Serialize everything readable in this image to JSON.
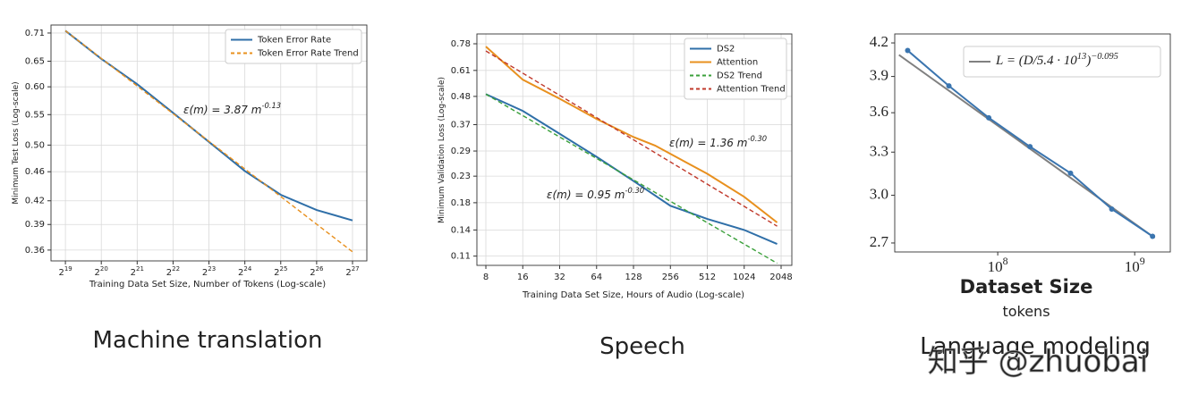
{
  "chart_data": [
    {
      "type": "line",
      "caption": "Machine translation",
      "xlabel": "Training Data Set Size, Number of Tokens (Log-scale)",
      "ylabel": "Minimum Test Loss (Log-scale)",
      "xscale": "log",
      "yscale": "log",
      "grid": true,
      "legend": "upper right",
      "xlim": [
        397000,
        177000000
      ],
      "ylim": [
        0.348,
        0.728
      ],
      "xticks": [
        {
          "value": 524288,
          "label": "2^{19}"
        },
        {
          "value": 1048576,
          "label": "2^{20}"
        },
        {
          "value": 2097152,
          "label": "2^{21}"
        },
        {
          "value": 4194304,
          "label": "2^{22}"
        },
        {
          "value": 8388608,
          "label": "2^{23}"
        },
        {
          "value": 16777216,
          "label": "2^{24}"
        },
        {
          "value": 33554432,
          "label": "2^{25}"
        },
        {
          "value": 67108864,
          "label": "2^{26}"
        },
        {
          "value": 134217728,
          "label": "2^{27}"
        }
      ],
      "yticks": [
        0.36,
        0.39,
        0.42,
        0.46,
        {
          "value": 0.5,
          "label": "0.50"
        },
        0.55,
        {
          "value": 0.6,
          "label": "0.60"
        },
        0.65,
        0.71
      ],
      "series": [
        {
          "name": "Token Error Rate",
          "color": "#2f6fa8",
          "linestyle": "solid",
          "x": [
            524288,
            1048576,
            2097152,
            4194304,
            8388608,
            16777216,
            33554432,
            67108864,
            134217728
          ],
          "values": [
            0.715,
            0.655,
            0.605,
            0.553,
            0.505,
            0.461,
            0.428,
            0.408,
            0.395
          ]
        },
        {
          "name": "Token Error Rate Trend",
          "color": "#e8901e",
          "linestyle": "dashed",
          "x": [
            524288,
            134217728
          ],
          "values": [
            0.715,
            0.358
          ]
        }
      ],
      "annotations": [
        "ε(m) = 3.87 m^{-0.13}"
      ]
    },
    {
      "type": "line",
      "caption": "Speech",
      "xlabel": "Training Data Set Size, Hours of Audio (Log-scale)",
      "ylabel": "Minimum Validation Loss (Log-scale)",
      "xscale": "log",
      "yscale": "log",
      "grid": true,
      "legend": "upper right",
      "xlim": [
        6.76,
        2505
      ],
      "ylim": [
        0.101,
        0.854
      ],
      "xticks": [
        8,
        16,
        32,
        64,
        128,
        256,
        512,
        1024,
        2048
      ],
      "yticks": [
        0.11,
        0.14,
        0.18,
        0.23,
        0.29,
        0.37,
        0.48,
        0.61,
        0.78
      ],
      "series": [
        {
          "name": "DS2",
          "color": "#2f6fa8",
          "linestyle": "solid",
          "x": [
            8,
            16,
            32,
            64,
            128,
            256,
            512,
            1024,
            1900
          ],
          "values": [
            0.49,
            0.42,
            0.34,
            0.275,
            0.22,
            0.175,
            0.155,
            0.14,
            0.123
          ]
        },
        {
          "name": "Attention",
          "color": "#e8901e",
          "linestyle": "solid",
          "x": [
            8,
            16,
            32,
            64,
            128,
            192,
            512,
            1024,
            1900
          ],
          "values": [
            0.76,
            0.56,
            0.47,
            0.39,
            0.33,
            0.305,
            0.235,
            0.19,
            0.15
          ]
        },
        {
          "name": "DS2 Trend",
          "color": "#3aa03a",
          "linestyle": "dashed",
          "x": [
            8,
            1900
          ],
          "values": [
            0.49,
            0.103
          ]
        },
        {
          "name": "Attention Trend",
          "color": "#c0392b",
          "linestyle": "dashed",
          "x": [
            8,
            1900
          ],
          "values": [
            0.73,
            0.145
          ]
        }
      ],
      "annotations": [
        "ε(m) = 1.36 m^{-0.30}",
        "ε(m) = 0.95 m^{-0.30}"
      ]
    },
    {
      "type": "line",
      "caption": "Language modeling",
      "xlabel": "Dataset Size",
      "xlabel_unit": "tokens",
      "xscale": "log",
      "yscale": "log",
      "grid": false,
      "legend": "upper left",
      "xlim": [
        17700000,
        1820000000
      ],
      "ylim": [
        2.647,
        4.284
      ],
      "xticks": [
        {
          "value": 100000000,
          "label": "10^{8}"
        },
        {
          "value": 1000000000,
          "label": "10^{9}"
        }
      ],
      "yticks": [
        2.7,
        {
          "value": 3,
          "label": "3.0"
        },
        3.3,
        3.6,
        3.9,
        4.2
      ],
      "series": [
        {
          "name": "L = (D/5.4 · 10^{13})^{−0.095}",
          "color": "#808080",
          "linestyle": "solid",
          "x": [
            19000000,
            1400000000
          ],
          "values": [
            4.09,
            2.73
          ]
        },
        {
          "color": "#3b75af",
          "linestyle": "solid",
          "marker": true,
          "x": [
            22000000,
            44000000,
            86000000,
            172000000,
            340000000,
            680000000,
            1350000000
          ],
          "values": [
            4.13,
            3.82,
            3.56,
            3.34,
            3.15,
            2.91,
            2.74
          ]
        }
      ],
      "watermark": "知乎 @zhuobai"
    }
  ]
}
